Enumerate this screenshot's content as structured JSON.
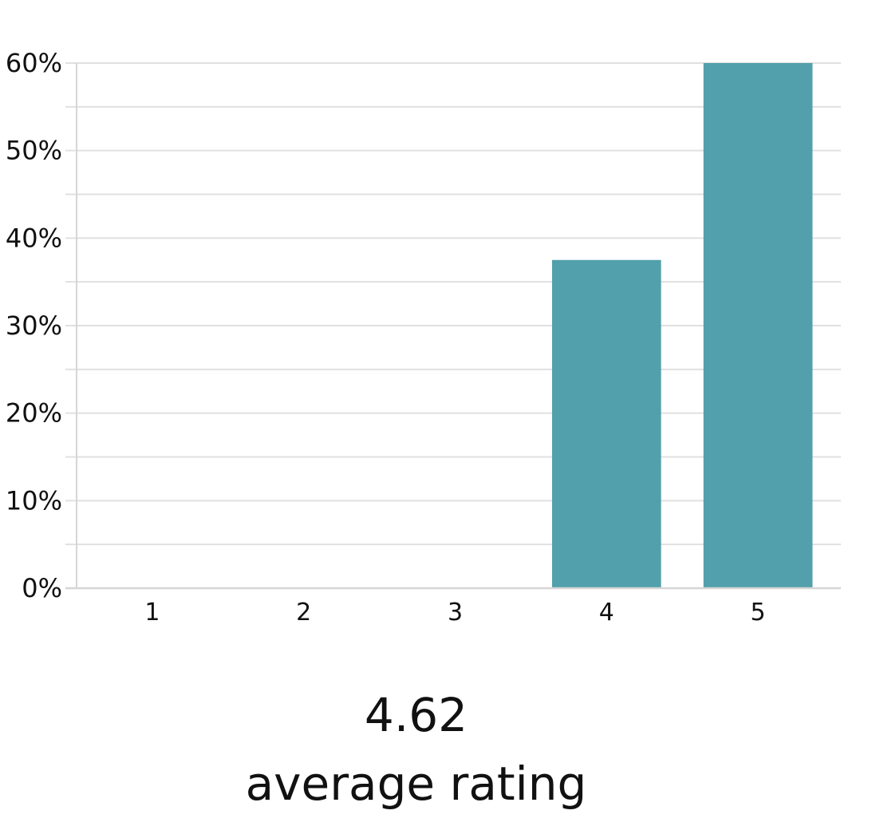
{
  "chart_data": {
    "type": "bar",
    "categories": [
      "1",
      "2",
      "3",
      "4",
      "5"
    ],
    "values": [
      0,
      0,
      0,
      37.5,
      60
    ],
    "value_format": "percent",
    "ylim": [
      0,
      60
    ],
    "yticks": [
      0,
      10,
      20,
      30,
      40,
      50,
      60
    ],
    "ytick_labels": [
      "0%",
      "10%",
      "20%",
      "30%",
      "40%",
      "50%",
      "60%"
    ],
    "grid": true,
    "colors": {
      "bar": "#52a0ac",
      "grid": "#e0e0e0",
      "axis": "#d6d6d6"
    }
  },
  "summary": {
    "value": "4.62",
    "label": "average rating"
  }
}
